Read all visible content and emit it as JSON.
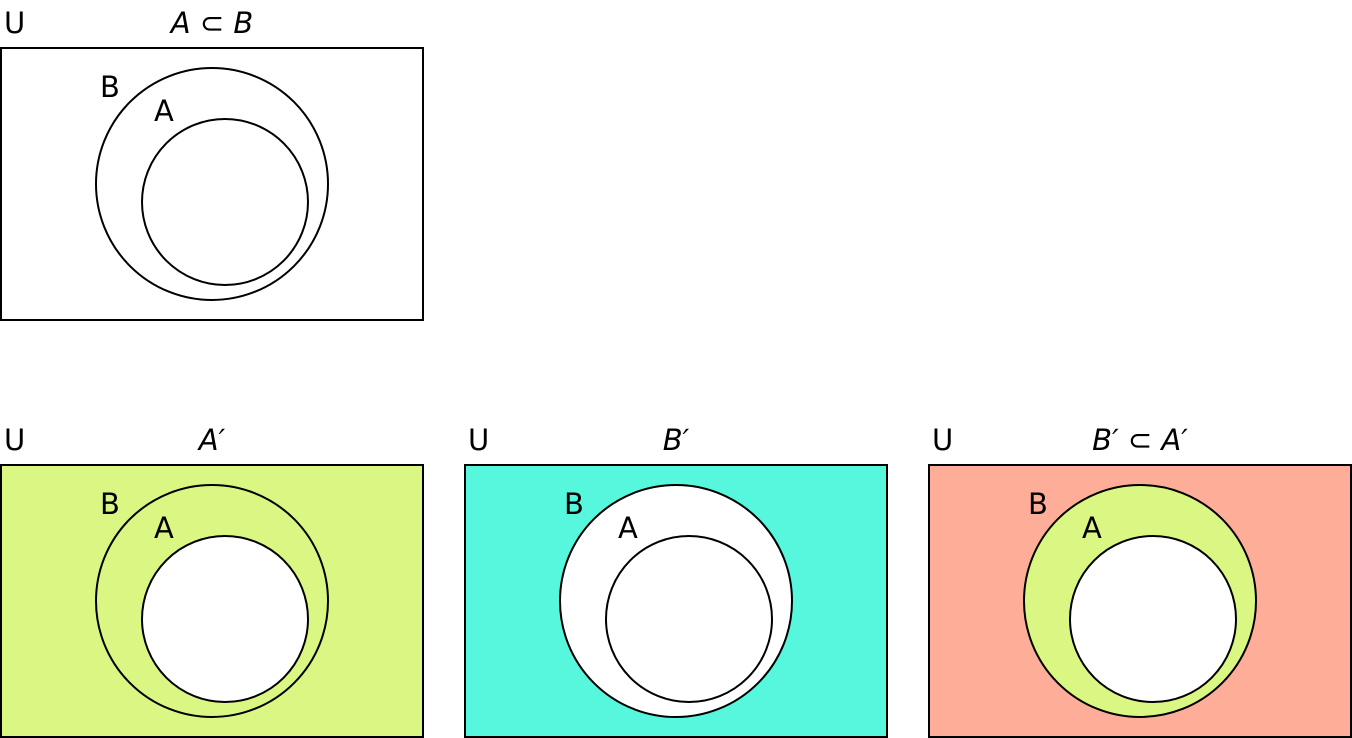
{
  "panels": [
    {
      "universe_label": "U",
      "title": "A ⊂ B",
      "set_b_label": "B",
      "set_a_label": "A",
      "colors": {
        "background": "#ffffff",
        "ring": "#ffffff",
        "set_a": "#ffffff"
      }
    },
    {
      "universe_label": "U",
      "title": "A′",
      "set_b_label": "B",
      "set_a_label": "A",
      "colors": {
        "background": "#dbf783",
        "ring": "#dbf783",
        "set_a": "#ffffff"
      }
    },
    {
      "universe_label": "U",
      "title": "B′",
      "set_b_label": "B",
      "set_a_label": "A",
      "colors": {
        "background": "#57f7dd",
        "ring": "#ffffff",
        "set_a": "#ffffff"
      }
    },
    {
      "universe_label": "U",
      "title": "B′ ⊂ A′",
      "set_b_label": "B",
      "set_a_label": "A",
      "colors": {
        "background": "#fead98",
        "ring": "#dbf783",
        "set_a": "#ffffff"
      }
    }
  ]
}
